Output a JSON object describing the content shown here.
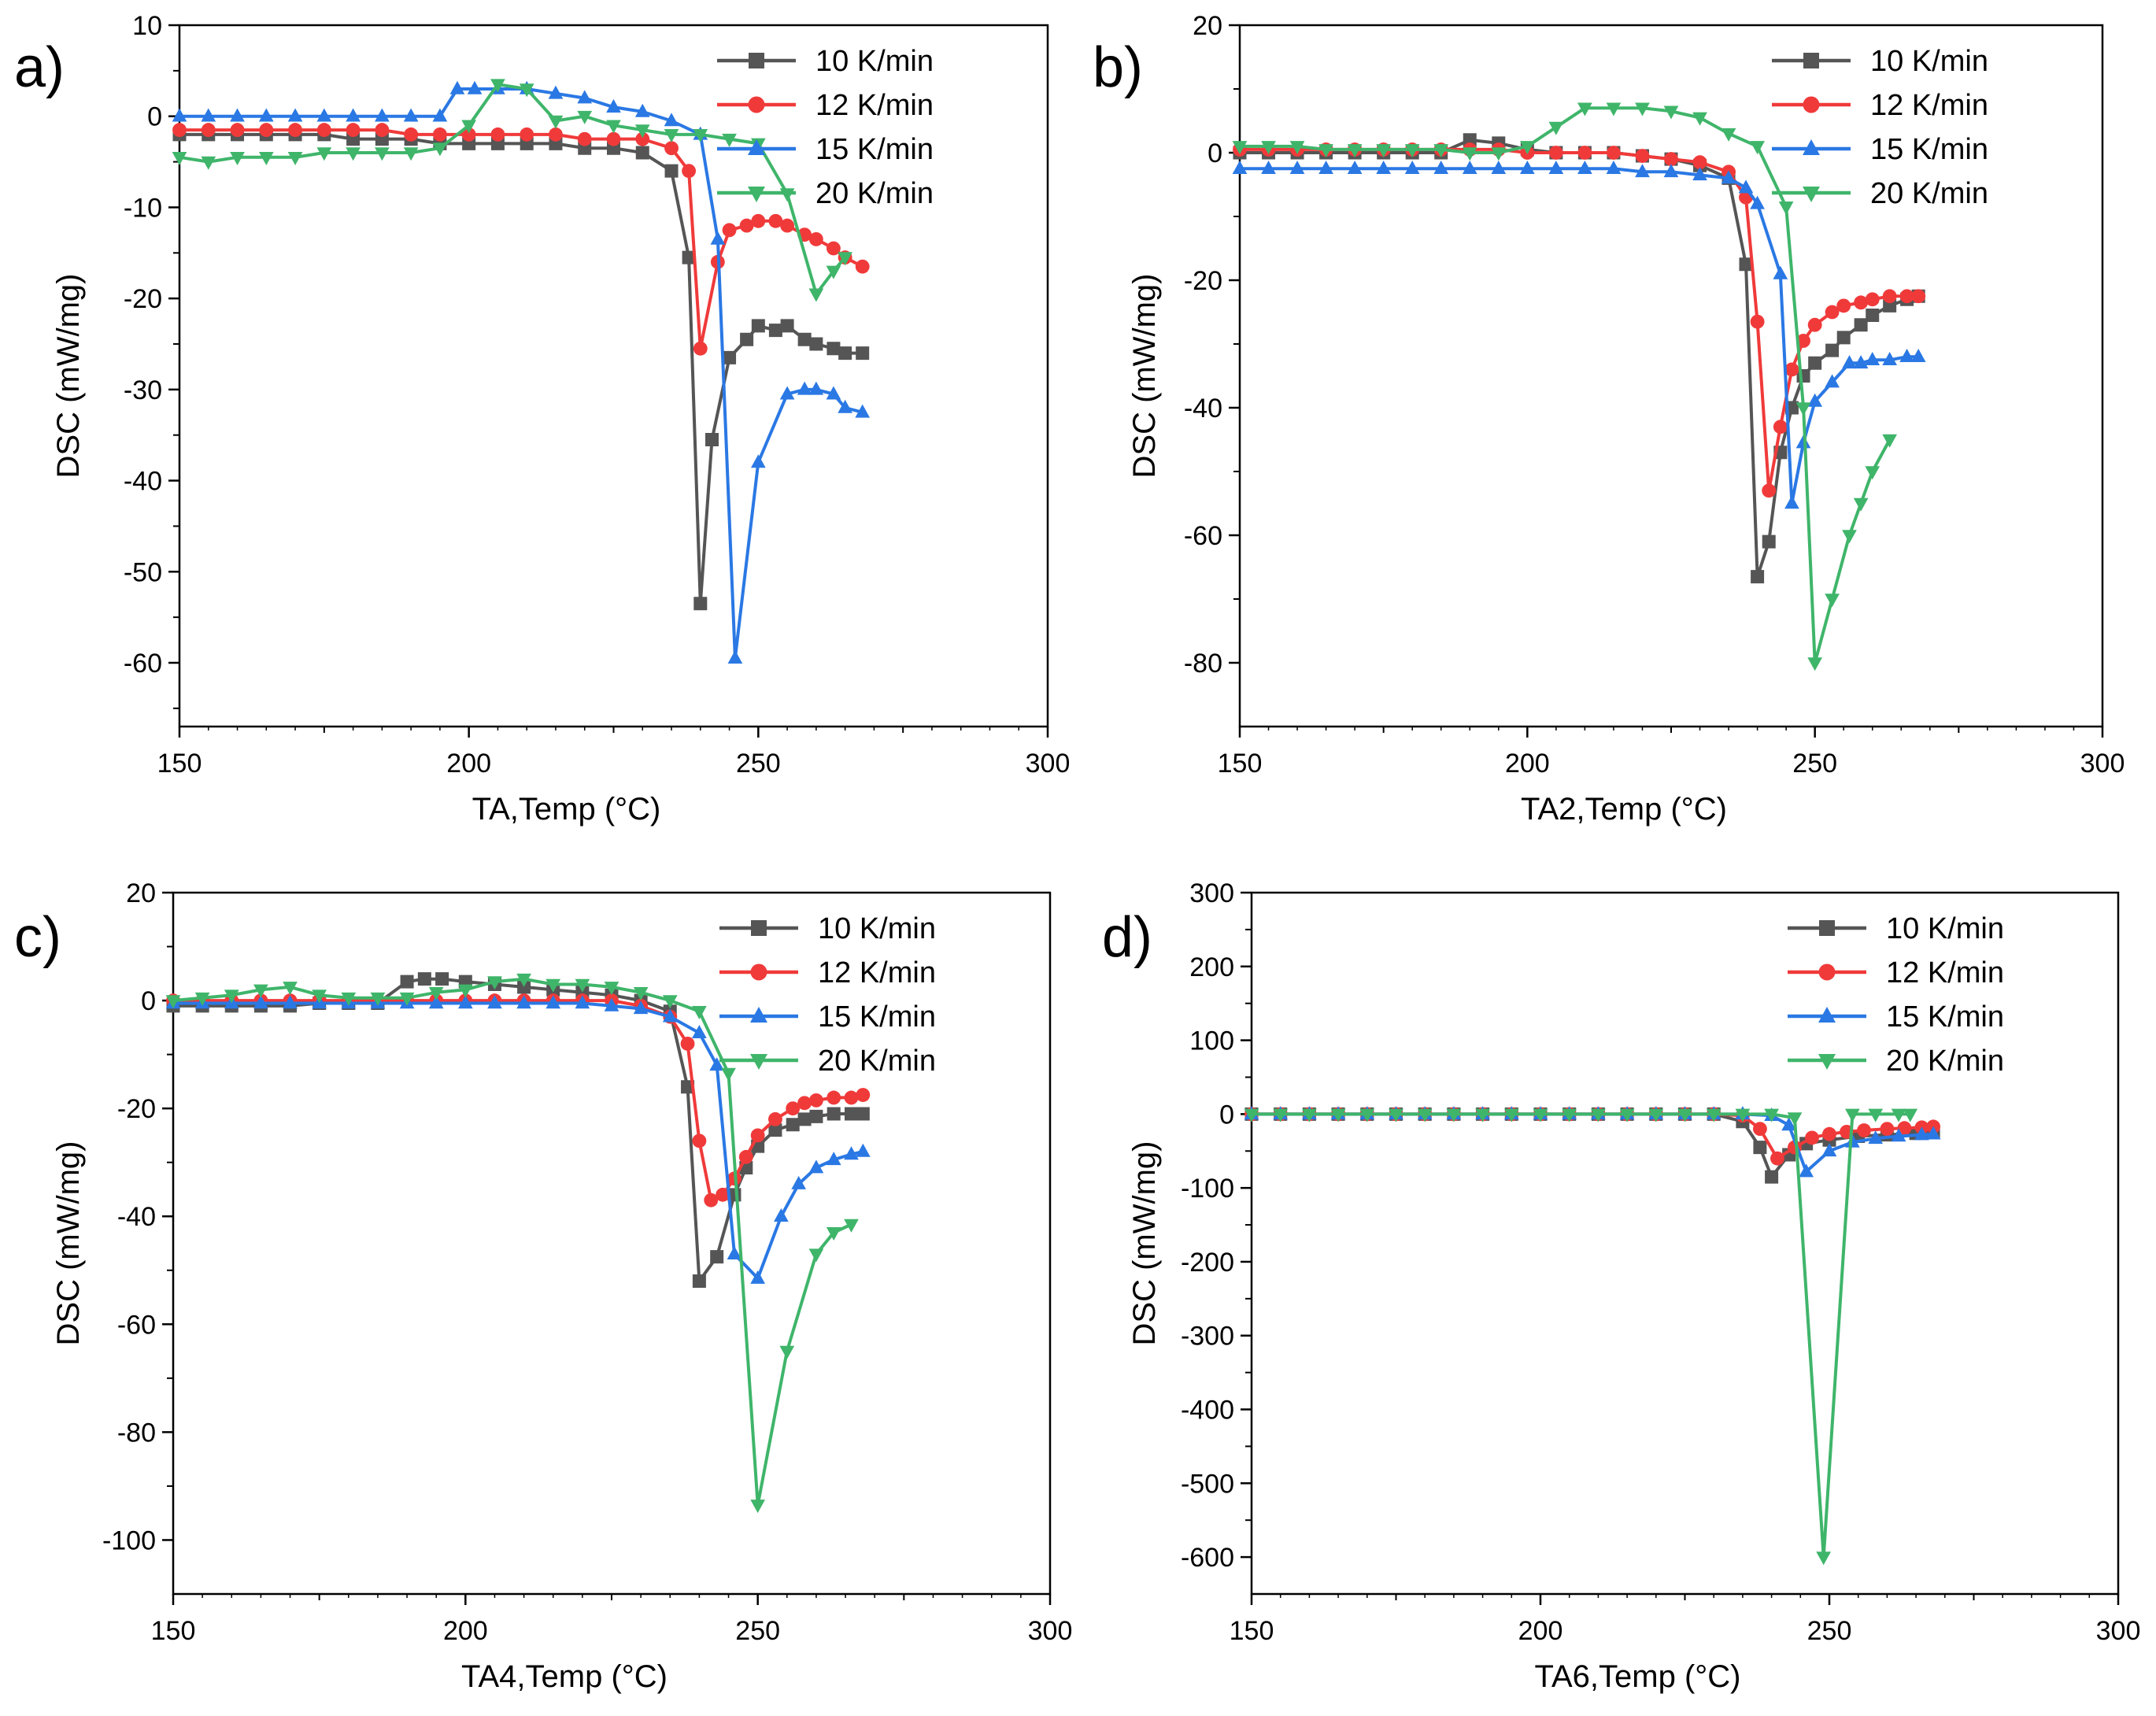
{
  "series_colors": {
    "10 K/min": "#555555",
    "12 K/min": "#f03a3a",
    "15 K/min": "#2a78e4",
    "20 K/min": "#3fb56a"
  },
  "series_markers": {
    "10 K/min": "square",
    "12 K/min": "circle",
    "15 K/min": "triangle-up",
    "20 K/min": "triangle-down"
  },
  "chart_data": [
    {
      "type": "line",
      "panel": "a)",
      "xlabel": "TA,Temp (°C)",
      "ylabel": "DSC (mW/mg)",
      "xlim": [
        150,
        300
      ],
      "ylim": [
        -67,
        10
      ],
      "xticks": [
        150,
        200,
        250,
        300
      ],
      "yticks": [
        10,
        0,
        -10,
        -20,
        -30,
        -40,
        -50,
        -60
      ],
      "legend_position": "top-right",
      "series": [
        {
          "name": "10 K/min",
          "x": [
            150,
            155,
            160,
            165,
            170,
            175,
            180,
            185,
            190,
            195,
            200,
            205,
            210,
            215,
            220,
            225,
            230,
            235,
            238,
            240,
            242,
            245,
            248,
            250,
            253,
            255,
            258,
            260,
            263,
            265,
            268
          ],
          "y": [
            -2,
            -2,
            -2,
            -2,
            -2,
            -2,
            -2.5,
            -2.5,
            -2.5,
            -3,
            -3,
            -3,
            -3,
            -3,
            -3.5,
            -3.5,
            -4,
            -6,
            -15.5,
            -53.5,
            -35.5,
            -26.5,
            -24.5,
            -23,
            -23.5,
            -23,
            -24.5,
            -25,
            -25.5,
            -26,
            -26
          ]
        },
        {
          "name": "12 K/min",
          "x": [
            150,
            155,
            160,
            165,
            170,
            175,
            180,
            185,
            190,
            195,
            200,
            205,
            210,
            215,
            220,
            225,
            230,
            235,
            238,
            240,
            243,
            245,
            248,
            250,
            253,
            255,
            258,
            260,
            263,
            265,
            268
          ],
          "y": [
            -1.5,
            -1.5,
            -1.5,
            -1.5,
            -1.5,
            -1.5,
            -1.5,
            -1.5,
            -2,
            -2,
            -2,
            -2,
            -2,
            -2,
            -2.5,
            -2.5,
            -2.5,
            -3.5,
            -6,
            -25.5,
            -16,
            -12.5,
            -12,
            -11.5,
            -11.5,
            -12,
            -13,
            -13.5,
            -14.5,
            -15.5,
            -16.5
          ]
        },
        {
          "name": "15 K/min",
          "x": [
            150,
            155,
            160,
            165,
            170,
            175,
            180,
            185,
            190,
            195,
            198,
            201,
            205,
            210,
            215,
            220,
            225,
            230,
            235,
            240,
            243,
            246,
            250,
            255,
            258,
            260,
            263,
            265,
            268
          ],
          "y": [
            0,
            0,
            0,
            0,
            0,
            0,
            0,
            0,
            0,
            0,
            3,
            3,
            3,
            3,
            2.5,
            2,
            1,
            0.5,
            -0.5,
            -2,
            -13.5,
            -59.5,
            -38,
            -30.5,
            -30,
            -30,
            -30.5,
            -32,
            -32.5
          ]
        },
        {
          "name": "20 K/min",
          "x": [
            150,
            155,
            160,
            165,
            170,
            175,
            180,
            185,
            190,
            195,
            200,
            205,
            210,
            215,
            220,
            225,
            230,
            235,
            240,
            245,
            250,
            255,
            260,
            263,
            265
          ],
          "y": [
            -4.5,
            -5,
            -4.5,
            -4.5,
            -4.5,
            -4,
            -4,
            -4,
            -4,
            -3.5,
            -1,
            3.5,
            3,
            -0.5,
            0,
            -1,
            -1.5,
            -2,
            -2,
            -2.5,
            -3,
            -8.5,
            -19.5,
            -17,
            -15.5
          ]
        }
      ]
    },
    {
      "type": "line",
      "panel": "b)",
      "xlabel": "TA2,Temp (°C)",
      "ylabel": "DSC (mW/mg)",
      "xlim": [
        150,
        300
      ],
      "ylim": [
        -90,
        20
      ],
      "xticks": [
        150,
        200,
        250,
        300
      ],
      "yticks": [
        20,
        0,
        -20,
        -40,
        -60,
        -80
      ],
      "legend_position": "top-right",
      "series": [
        {
          "name": "10 K/min",
          "x": [
            150,
            155,
            160,
            165,
            170,
            175,
            180,
            185,
            190,
            195,
            200,
            205,
            210,
            215,
            220,
            225,
            230,
            235,
            238,
            240,
            242,
            244,
            246,
            248,
            250,
            253,
            255,
            258,
            260,
            263,
            266,
            268
          ],
          "y": [
            0,
            0,
            0,
            0,
            0,
            0,
            0,
            0,
            2,
            1.5,
            0.5,
            0,
            0,
            0,
            -0.5,
            -1,
            -2,
            -4,
            -17.5,
            -66.5,
            -61,
            -47,
            -40,
            -35,
            -33,
            -31,
            -29,
            -27,
            -25.5,
            -24,
            -23,
            -22.5
          ]
        },
        {
          "name": "12 K/min",
          "x": [
            150,
            155,
            160,
            165,
            170,
            175,
            180,
            185,
            190,
            195,
            200,
            205,
            210,
            215,
            220,
            225,
            230,
            235,
            238,
            240,
            242,
            244,
            246,
            248,
            250,
            253,
            255,
            258,
            260,
            263,
            266,
            268
          ],
          "y": [
            0.5,
            0.5,
            0.5,
            0.5,
            0.5,
            0.5,
            0.5,
            0.5,
            0.5,
            0.5,
            0,
            0,
            0,
            0,
            -0.5,
            -1,
            -1.5,
            -3,
            -7,
            -26.5,
            -53,
            -43,
            -34,
            -29.5,
            -27,
            -25,
            -24,
            -23.5,
            -23,
            -22.5,
            -22.5,
            -22.5
          ]
        },
        {
          "name": "15 K/min",
          "x": [
            150,
            155,
            160,
            165,
            170,
            175,
            180,
            185,
            190,
            195,
            200,
            205,
            210,
            215,
            220,
            225,
            230,
            235,
            238,
            240,
            244,
            246,
            248,
            250,
            253,
            256,
            258,
            260,
            263,
            266,
            268
          ],
          "y": [
            -2.5,
            -2.5,
            -2.5,
            -2.5,
            -2.5,
            -2.5,
            -2.5,
            -2.5,
            -2.5,
            -2.5,
            -2.5,
            -2.5,
            -2.5,
            -2.5,
            -3,
            -3,
            -3.5,
            -4,
            -5.5,
            -8,
            -19,
            -55,
            -45.5,
            -39,
            -36,
            -33,
            -33,
            -32.5,
            -32.5,
            -32,
            -32
          ]
        },
        {
          "name": "20 K/min",
          "x": [
            150,
            155,
            160,
            165,
            170,
            175,
            180,
            185,
            190,
            195,
            200,
            205,
            210,
            215,
            220,
            225,
            230,
            235,
            240,
            245,
            248,
            250,
            253,
            256,
            258,
            260,
            263
          ],
          "y": [
            1,
            1,
            1,
            0.5,
            0.5,
            0.5,
            0.5,
            0.5,
            0,
            0,
            1,
            4,
            7,
            7,
            7,
            6.5,
            5.5,
            3,
            1,
            -8.5,
            -40,
            -80,
            -70,
            -60,
            -55,
            -50,
            -45
          ]
        }
      ]
    },
    {
      "type": "line",
      "panel": "c)",
      "xlabel": "TA4,Temp (°C)",
      "ylabel": "DSC (mW/mg)",
      "xlim": [
        150,
        300
      ],
      "ylim": [
        -110,
        20
      ],
      "xticks": [
        150,
        200,
        250,
        300
      ],
      "yticks": [
        20,
        0,
        -20,
        -40,
        -60,
        -80,
        -100
      ],
      "legend_position": "top-right",
      "series": [
        {
          "name": "10 K/min",
          "x": [
            150,
            155,
            160,
            165,
            170,
            175,
            180,
            185,
            190,
            193,
            196,
            200,
            205,
            210,
            215,
            220,
            225,
            230,
            235,
            238,
            240,
            243,
            246,
            248,
            250,
            253,
            256,
            258,
            260,
            263,
            266,
            268
          ],
          "y": [
            -1,
            -1,
            -1,
            -1,
            -1,
            -0.5,
            -0.5,
            -0.5,
            3.5,
            4,
            4,
            3.5,
            3,
            2.5,
            2,
            1.5,
            1,
            0,
            -2,
            -16,
            -52,
            -47.5,
            -36,
            -31,
            -27,
            -24,
            -23,
            -22,
            -21.5,
            -21,
            -21,
            -21
          ]
        },
        {
          "name": "12 K/min",
          "x": [
            150,
            155,
            160,
            165,
            170,
            175,
            180,
            185,
            190,
            195,
            200,
            205,
            210,
            215,
            220,
            225,
            230,
            235,
            238,
            240,
            242,
            244,
            246,
            248,
            250,
            253,
            256,
            258,
            260,
            263,
            266,
            268
          ],
          "y": [
            0,
            0,
            0,
            0,
            0,
            0,
            0,
            0,
            0,
            0,
            0,
            0,
            0,
            0,
            0,
            0,
            -1,
            -3,
            -8,
            -26,
            -37,
            -36,
            -33,
            -29,
            -25,
            -22,
            -20,
            -19,
            -18.5,
            -18,
            -18,
            -17.5
          ]
        },
        {
          "name": "15 K/min",
          "x": [
            150,
            155,
            160,
            165,
            170,
            175,
            180,
            185,
            190,
            195,
            200,
            205,
            210,
            215,
            220,
            225,
            230,
            235,
            240,
            243,
            246,
            250,
            254,
            257,
            260,
            263,
            266,
            268
          ],
          "y": [
            -0.5,
            -0.5,
            -0.5,
            -0.5,
            -0.5,
            -0.5,
            -0.5,
            -0.5,
            -0.5,
            -0.5,
            -0.5,
            -0.5,
            -0.5,
            -0.5,
            -0.5,
            -1,
            -1.5,
            -3,
            -6,
            -12,
            -47,
            -51.5,
            -40,
            -34,
            -31,
            -29.5,
            -28.5,
            -28
          ]
        },
        {
          "name": "20 K/min",
          "x": [
            150,
            155,
            160,
            165,
            170,
            175,
            180,
            185,
            190,
            195,
            200,
            205,
            210,
            215,
            220,
            225,
            230,
            235,
            240,
            245,
            250,
            255,
            260,
            263,
            266
          ],
          "y": [
            0,
            0.5,
            1,
            2,
            2.5,
            1,
            0.5,
            0.5,
            0.5,
            1.5,
            2,
            3.5,
            4,
            3,
            3,
            2.5,
            1.5,
            0,
            -2,
            -13.5,
            -93.5,
            -65,
            -47,
            -43,
            -41.5
          ]
        }
      ]
    },
    {
      "type": "line",
      "panel": "d)",
      "xlabel": "TA6,Temp (°C)",
      "ylabel": "DSC (mW/mg)",
      "xlim": [
        150,
        300
      ],
      "ylim": [
        -650,
        300
      ],
      "xticks": [
        150,
        200,
        250,
        300
      ],
      "yticks": [
        300,
        200,
        100,
        0,
        -100,
        -200,
        -300,
        -400,
        -500,
        -600
      ],
      "legend_position": "top-right",
      "series": [
        {
          "name": "10 K/min",
          "x": [
            150,
            155,
            160,
            165,
            170,
            175,
            180,
            185,
            190,
            195,
            200,
            205,
            210,
            215,
            220,
            225,
            230,
            235,
            238,
            240,
            243,
            246,
            250,
            255,
            260,
            265,
            268
          ],
          "y": [
            0,
            0,
            0,
            0,
            0,
            0,
            0,
            0,
            0,
            0,
            0,
            0,
            0,
            0,
            0,
            0,
            0,
            -10,
            -45,
            -85,
            -55,
            -40,
            -35,
            -30,
            -28,
            -26,
            -25
          ]
        },
        {
          "name": "12 K/min",
          "x": [
            150,
            155,
            160,
            165,
            170,
            175,
            180,
            185,
            190,
            195,
            200,
            205,
            210,
            215,
            220,
            225,
            230,
            235,
            238,
            241,
            244,
            247,
            250,
            253,
            256,
            260,
            263,
            266,
            268
          ],
          "y": [
            0,
            0,
            0,
            0,
            0,
            0,
            0,
            0,
            0,
            0,
            0,
            0,
            0,
            0,
            0,
            0,
            0,
            -2,
            -20,
            -60,
            -45,
            -32,
            -27,
            -24,
            -22,
            -20,
            -19,
            -18,
            -17
          ]
        },
        {
          "name": "15 K/min",
          "x": [
            150,
            155,
            160,
            165,
            170,
            175,
            180,
            185,
            190,
            195,
            200,
            205,
            210,
            215,
            220,
            225,
            230,
            235,
            240,
            243,
            246,
            250,
            254,
            258,
            262,
            266,
            268
          ],
          "y": [
            0,
            0,
            0,
            0,
            0,
            0,
            0,
            0,
            0,
            0,
            0,
            0,
            0,
            0,
            0,
            0,
            0,
            0,
            -2,
            -15,
            -78,
            -50,
            -38,
            -33,
            -30,
            -28,
            -27
          ]
        },
        {
          "name": "20 K/min",
          "x": [
            150,
            155,
            160,
            165,
            170,
            175,
            180,
            185,
            190,
            195,
            200,
            205,
            210,
            215,
            220,
            225,
            230,
            235,
            240,
            244,
            249,
            254,
            258,
            262,
            264
          ],
          "y": [
            0,
            0,
            0,
            0,
            0,
            0,
            0,
            0,
            0,
            0,
            0,
            0,
            0,
            0,
            0,
            0,
            0,
            0,
            0,
            -5,
            -600,
            0,
            0,
            0,
            0
          ]
        }
      ]
    }
  ]
}
